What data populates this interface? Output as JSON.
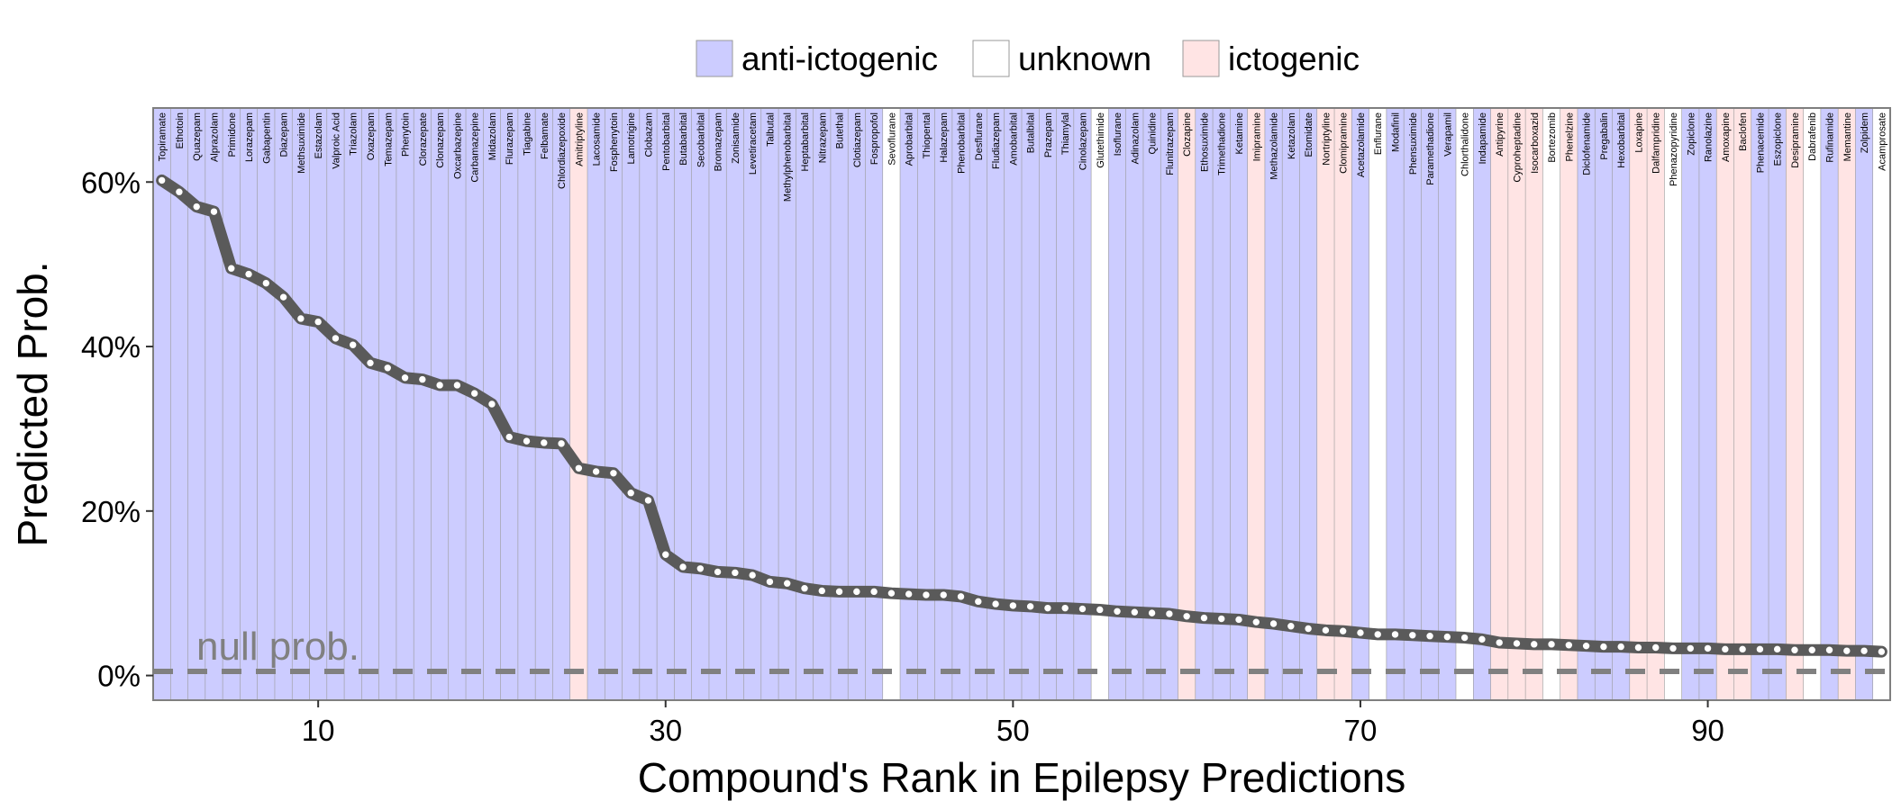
{
  "colors": {
    "anti-ictogenic": "#ccccff",
    "unknown": "#ffffff",
    "ictogenic": "#ffe4e4",
    "line": "#5a5a5a",
    "null_line": "#808080"
  },
  "chart_data": {
    "type": "line",
    "xlabel": "Compound's Rank in Epilepsy Predictions",
    "ylabel": "Predicted Prob.",
    "xlim": [
      0.5,
      100.5
    ],
    "ylim": [
      -3,
      69
    ],
    "x_ticks": [
      10,
      30,
      50,
      70,
      90
    ],
    "x_tick_labels": [
      "10",
      "30",
      "50",
      "70",
      "90"
    ],
    "y_ticks": [
      0,
      20,
      40,
      60
    ],
    "y_tick_labels": [
      "0%",
      "20%",
      "40%",
      "60%"
    ],
    "legend": {
      "position": "top",
      "entries": [
        {
          "key": "anti-ictogenic",
          "label": "anti-ictogenic"
        },
        {
          "key": "unknown",
          "label": "unknown"
        },
        {
          "key": "ictogenic",
          "label": "ictogenic"
        }
      ]
    },
    "null_prob": {
      "value": 0.5,
      "label": "null prob."
    },
    "grid": false,
    "compounds": [
      "Topiramate",
      "Ethotoin",
      "Quazepam",
      "Alprazolam",
      "Primidone",
      "Lorazepam",
      "Gabapentin",
      "Diazepam",
      "Methsuximide",
      "Estazolam",
      "Valproic Acid",
      "Triazolam",
      "Oxazepam",
      "Temazepam",
      "Phenytoin",
      "Clorazepate",
      "Clonazepam",
      "Oxcarbazepine",
      "Carbamazepine",
      "Midazolam",
      "Flurazepam",
      "Tiagabine",
      "Felbamate",
      "Chlordiazepoxide",
      "Amitriptyline",
      "Lacosamide",
      "Fosphenytoin",
      "Lamotrigine",
      "Clobazam",
      "Pentobarbital",
      "Butabarbital",
      "Secobarbital",
      "Bromazepam",
      "Zonisamide",
      "Levetiracetam",
      "Talbutal",
      "Methylphenobarbital",
      "Heptabarbital",
      "Nitrazepam",
      "Butethal",
      "Clotiazepam",
      "Fospropofol",
      "Sevoflurane",
      "Aprobarbital",
      "Thiopental",
      "Halazepam",
      "Phenobarbital",
      "Desflurane",
      "Fludiazepam",
      "Amobarbital",
      "Butalbital",
      "Prazepam",
      "Thiamylal",
      "Cinolazepam",
      "Glutethimide",
      "Isoflurane",
      "Adinazolam",
      "Quinidine",
      "Flunitrazepam",
      "Clozapine",
      "Ethosuximide",
      "Trimethadione",
      "Ketamine",
      "Imipramine",
      "Methazolamide",
      "Ketazolam",
      "Etomidate",
      "Nortriptyline",
      "Clomipramine",
      "Acetazolamide",
      "Enflurane",
      "Modafinil",
      "Phensuximide",
      "Paramethadione",
      "Verapamil",
      "Chlorthalidone",
      "Indapamide",
      "Antipyrine",
      "Cyproheptadine",
      "Isocarboxazid",
      "Bortezomib",
      "Phenelzine",
      "Diclofenamide",
      "Pregabalin",
      "Hexobarbital",
      "Loxapine",
      "Dalfampridine",
      "Phenazopyridine",
      "Zopiclone",
      "Ranolazine",
      "Amoxapine",
      "Baclofen",
      "Phenacemide",
      "Eszopiclone",
      "Desipramine",
      "Dabrafenib",
      "Rufinamide",
      "Memantine",
      "Zolpidem",
      "Acamprosate"
    ],
    "categories_class": [
      "anti-ictogenic",
      "anti-ictogenic",
      "anti-ictogenic",
      "anti-ictogenic",
      "anti-ictogenic",
      "anti-ictogenic",
      "anti-ictogenic",
      "anti-ictogenic",
      "anti-ictogenic",
      "anti-ictogenic",
      "anti-ictogenic",
      "anti-ictogenic",
      "anti-ictogenic",
      "anti-ictogenic",
      "anti-ictogenic",
      "anti-ictogenic",
      "anti-ictogenic",
      "anti-ictogenic",
      "anti-ictogenic",
      "anti-ictogenic",
      "anti-ictogenic",
      "anti-ictogenic",
      "anti-ictogenic",
      "anti-ictogenic",
      "ictogenic",
      "anti-ictogenic",
      "anti-ictogenic",
      "anti-ictogenic",
      "anti-ictogenic",
      "anti-ictogenic",
      "anti-ictogenic",
      "anti-ictogenic",
      "anti-ictogenic",
      "anti-ictogenic",
      "anti-ictogenic",
      "anti-ictogenic",
      "anti-ictogenic",
      "anti-ictogenic",
      "anti-ictogenic",
      "anti-ictogenic",
      "anti-ictogenic",
      "anti-ictogenic",
      "unknown",
      "anti-ictogenic",
      "anti-ictogenic",
      "anti-ictogenic",
      "anti-ictogenic",
      "anti-ictogenic",
      "anti-ictogenic",
      "anti-ictogenic",
      "anti-ictogenic",
      "anti-ictogenic",
      "anti-ictogenic",
      "anti-ictogenic",
      "unknown",
      "anti-ictogenic",
      "anti-ictogenic",
      "anti-ictogenic",
      "anti-ictogenic",
      "ictogenic",
      "anti-ictogenic",
      "anti-ictogenic",
      "anti-ictogenic",
      "ictogenic",
      "anti-ictogenic",
      "anti-ictogenic",
      "anti-ictogenic",
      "ictogenic",
      "ictogenic",
      "anti-ictogenic",
      "unknown",
      "anti-ictogenic",
      "anti-ictogenic",
      "anti-ictogenic",
      "anti-ictogenic",
      "unknown",
      "anti-ictogenic",
      "ictogenic",
      "ictogenic",
      "ictogenic",
      "unknown",
      "ictogenic",
      "anti-ictogenic",
      "anti-ictogenic",
      "anti-ictogenic",
      "ictogenic",
      "ictogenic",
      "unknown",
      "anti-ictogenic",
      "anti-ictogenic",
      "ictogenic",
      "ictogenic",
      "anti-ictogenic",
      "anti-ictogenic",
      "ictogenic",
      "unknown",
      "anti-ictogenic",
      "ictogenic",
      "anti-ictogenic",
      "unknown"
    ],
    "values": [
      60.2,
      58.8,
      57.0,
      56.4,
      49.5,
      48.8,
      47.7,
      46.0,
      43.4,
      43.0,
      41.0,
      40.2,
      38.0,
      37.4,
      36.2,
      36.0,
      35.3,
      35.3,
      34.3,
      33.0,
      29.0,
      28.5,
      28.3,
      28.2,
      25.2,
      24.8,
      24.6,
      22.2,
      21.3,
      14.7,
      13.2,
      13.0,
      12.6,
      12.5,
      12.2,
      11.4,
      11.2,
      10.6,
      10.3,
      10.2,
      10.2,
      10.2,
      10.0,
      9.9,
      9.8,
      9.8,
      9.6,
      9.0,
      8.7,
      8.5,
      8.4,
      8.2,
      8.2,
      8.1,
      8.0,
      7.8,
      7.7,
      7.6,
      7.5,
      7.2,
      7.0,
      6.9,
      6.8,
      6.5,
      6.3,
      6.0,
      5.7,
      5.5,
      5.4,
      5.2,
      5.0,
      5.0,
      4.9,
      4.8,
      4.7,
      4.6,
      4.4,
      4.0,
      3.9,
      3.8,
      3.8,
      3.7,
      3.6,
      3.5,
      3.5,
      3.4,
      3.4,
      3.3,
      3.3,
      3.3,
      3.2,
      3.2,
      3.2,
      3.2,
      3.1,
      3.1,
      3.1,
      3.0,
      3.0,
      2.9
    ]
  }
}
